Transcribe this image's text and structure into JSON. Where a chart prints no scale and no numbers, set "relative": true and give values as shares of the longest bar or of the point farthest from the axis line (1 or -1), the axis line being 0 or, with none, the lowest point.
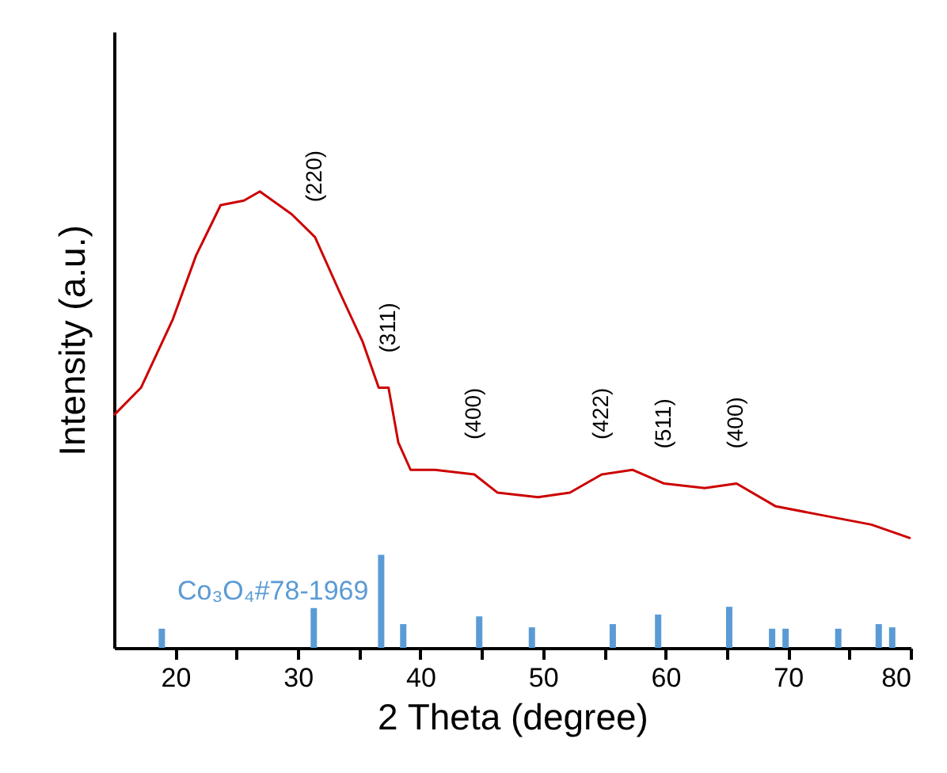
{
  "chart_data": {
    "type": "line",
    "relative": true,
    "xlabel": "2 Theta (degree)",
    "ylabel": "Intensity (a.u.)",
    "xlim": [
      15,
      80
    ],
    "xticks": [
      20,
      {
        "value": 25,
        "label": null
      },
      30,
      {
        "value": 35,
        "label": null
      },
      40,
      {
        "value": 45,
        "label": null
      },
      50,
      {
        "value": 55,
        "label": null
      },
      60,
      {
        "value": 65,
        "label": null
      },
      70,
      {
        "value": 75,
        "label": null
      },
      80
    ],
    "grid": false,
    "tick_labels": "x",
    "series": [
      {
        "color": "#cc0000",
        "x": [
          15,
          17.2,
          19.8,
          21.7,
          23.7,
          25.6,
          26.9,
          29.5,
          31.4,
          33.4,
          35.3,
          36.6,
          37.4,
          38.2,
          39.2,
          41.2,
          44.4,
          46.3,
          49.6,
          52.2,
          54.8,
          57.3,
          59.9,
          63.2,
          65.8,
          69.0,
          72.9,
          76.8,
          80
        ],
        "values": [
          0.51,
          0.57,
          0.72,
          0.86,
          0.97,
          0.98,
          1.0,
          0.95,
          0.9,
          0.78,
          0.67,
          0.57,
          0.57,
          0.45,
          0.39,
          0.39,
          0.38,
          0.34,
          0.33,
          0.34,
          0.38,
          0.39,
          0.36,
          0.35,
          0.36,
          0.31,
          0.29,
          0.27,
          0.24
        ]
      },
      {
        "type": "bar",
        "name": "Co₃O₄#78-1969",
        "color": "#5b9bd5",
        "x": [
          18.9,
          31.3,
          36.8,
          38.6,
          44.8,
          49.1,
          55.7,
          59.4,
          65.2,
          68.7,
          69.8,
          74.1,
          77.4,
          78.5
        ],
        "values": [
          0.042,
          0.087,
          0.204,
          0.052,
          0.069,
          0.045,
          0.052,
          0.073,
          0.09,
          0.042,
          0.042,
          0.042,
          0.052,
          0.045
        ]
      }
    ],
    "annotations": [
      {
        "text": "(220)",
        "x": 31.4,
        "y": 0.9
      },
      {
        "text": "(311)",
        "x": 37.4,
        "y": 0.57
      },
      {
        "text": "(400)",
        "x": 44.4,
        "y": 0.38
      },
      {
        "text": "(422)",
        "x": 54.8,
        "y": 0.38
      },
      {
        "text": "(511)",
        "x": 59.9,
        "y": 0.36
      },
      {
        "text": "(400)",
        "x": 65.8,
        "y": 0.36
      }
    ]
  }
}
